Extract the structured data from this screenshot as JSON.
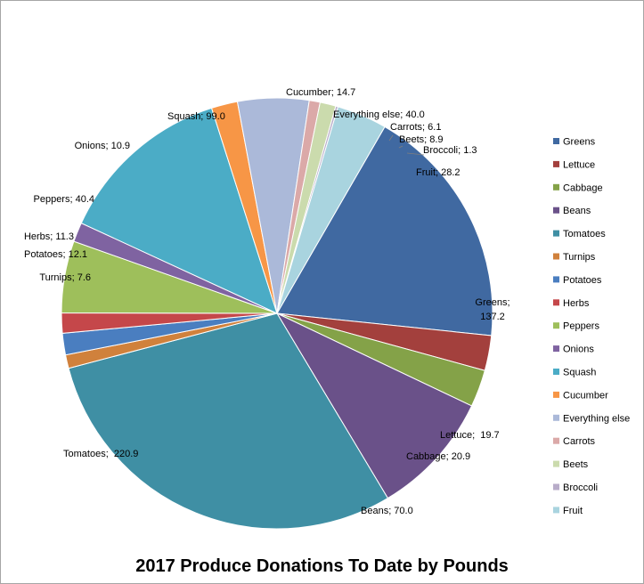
{
  "chart_data": {
    "type": "pie",
    "title": "2017 Produce Donations To Date by Pounds",
    "legend_position": "right",
    "slices": [
      {
        "name": "Greens",
        "value": 137.2,
        "label": "Greens;\n137.2",
        "color": "#4069a1"
      },
      {
        "name": "Lettuce",
        "value": 19.7,
        "label": "Lettuce;  19.7",
        "color": "#a3403d"
      },
      {
        "name": "Cabbage",
        "value": 20.9,
        "label": "Cabbage; 20.9",
        "color": "#84a248"
      },
      {
        "name": "Beans",
        "value": 70.0,
        "label": "Beans; 70.0",
        "color": "#6a5189"
      },
      {
        "name": "Tomatoes",
        "value": 220.9,
        "label": "Tomatoes;  220.9",
        "color": "#3f8fa4"
      },
      {
        "name": "Turnips",
        "value": 7.6,
        "label": "Turnips; 7.6",
        "color": "#d0813c"
      },
      {
        "name": "Potatoes",
        "value": 12.1,
        "label": "Potatoes; 12.1",
        "color": "#4a7ec0"
      },
      {
        "name": "Herbs",
        "value": 11.3,
        "label": "Herbs; 11.3",
        "color": "#c5474a"
      },
      {
        "name": "Peppers",
        "value": 40.4,
        "label": "Peppers; 40.4",
        "color": "#9ebf5b"
      },
      {
        "name": "Onions",
        "value": 10.9,
        "label": "Onions; 10.9",
        "color": "#7f63a1"
      },
      {
        "name": "Squash",
        "value": 99.0,
        "label": "Squash; 99.0",
        "color": "#4bacc6"
      },
      {
        "name": "Cucumber",
        "value": 14.7,
        "label": "Cucumber; 14.7",
        "color": "#f79646"
      },
      {
        "name": "Everything else",
        "value": 40.0,
        "label": "Everything else; 40.0",
        "color": "#abb9d9"
      },
      {
        "name": "Carrots",
        "value": 6.1,
        "label": "Carrots; 6.1",
        "color": "#dba9a8"
      },
      {
        "name": "Beets",
        "value": 8.9,
        "label": "Beets; 8.9",
        "color": "#cbdbad"
      },
      {
        "name": "Broccoli",
        "value": 1.3,
        "label": "Broccoli; 1.3",
        "color": "#b8acc9"
      },
      {
        "name": "Fruit",
        "value": 28.2,
        "label": "Fruit; 28.2",
        "color": "#a9d4df"
      }
    ]
  }
}
